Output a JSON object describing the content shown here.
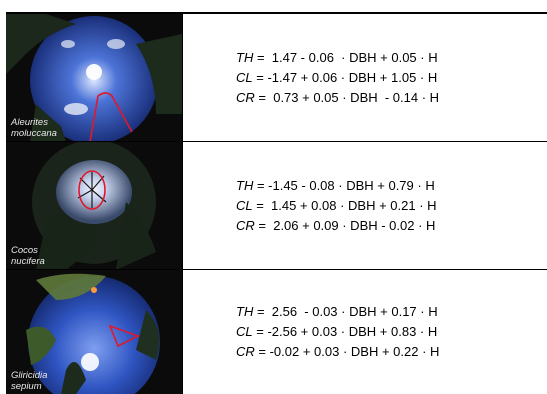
{
  "rows": [
    {
      "species_line1": "Aleurites",
      "species_line2": "moluccana",
      "equations": [
        {
          "lhs": "TH",
          "rhs": " =  1.47 - 0.06  · DBH + 0.05 · H"
        },
        {
          "lhs": "CL",
          "rhs": " = -1.47 + 0.06 · DBH + 1.05 · H"
        },
        {
          "lhs": "CR",
          "rhs": " =  0.73 + 0.05 · DBH  - 0.14 · H"
        }
      ]
    },
    {
      "species_line1": "Cocos",
      "species_line2": "nucifera",
      "equations": [
        {
          "lhs": "TH",
          "rhs": " = -1.45 - 0.08 · DBH + 0.79 · H"
        },
        {
          "lhs": "CL",
          "rhs": " =  1.45 + 0.08 · DBH + 0.21 · H"
        },
        {
          "lhs": "CR",
          "rhs": " =  2.06 + 0.09 · DBH - 0.02 · H"
        }
      ]
    },
    {
      "species_line1": "Gliricidia",
      "species_line2": "sepium",
      "equations": [
        {
          "lhs": "TH",
          "rhs": " =  2.56  - 0.03 · DBH + 0.17 · H"
        },
        {
          "lhs": "CL",
          "rhs": " = -2.56 + 0.03 · DBH + 0.83 · H"
        },
        {
          "lhs": "CR",
          "rhs": " = -0.02 + 0.03 · DBH + 0.22 · H"
        }
      ]
    }
  ],
  "colors": {
    "sky": "#2f5bc4",
    "canopy": "#1c2a1c",
    "marker": "#e0182a"
  }
}
